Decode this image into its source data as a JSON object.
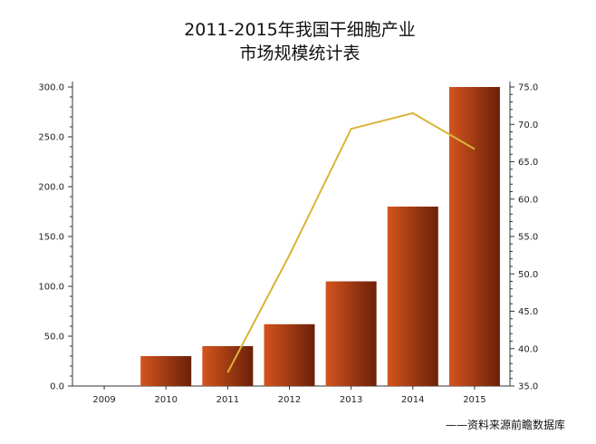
{
  "chart_data": {
    "type": "bar",
    "title_line1": "2011-2015年我国干细胞产业",
    "title_line2": "市场规模统计表",
    "categories": [
      "2009",
      "2010",
      "2011",
      "2012",
      "2013",
      "2014",
      "2015"
    ],
    "series": [
      {
        "type": "bar",
        "axis": "left",
        "values": [
          0,
          30,
          40,
          62,
          105,
          180,
          300
        ]
      },
      {
        "type": "line",
        "axis": "right",
        "values": [
          null,
          null,
          36.8,
          52.5,
          69.4,
          71.5,
          66.7
        ]
      }
    ],
    "y_left": {
      "min": 0,
      "max": 300,
      "ticks": [
        "0.0",
        "50.0",
        "100.0",
        "150.0",
        "200.0",
        "250.0",
        "300.0"
      ]
    },
    "y_right": {
      "min": 35,
      "max": 75,
      "ticks": [
        "35.0",
        "40.0",
        "45.0",
        "50.0",
        "55.0",
        "60.0",
        "65.0",
        "70.0",
        "75.0"
      ]
    },
    "grid": false,
    "colors": {
      "bar_light": "#d4541e",
      "bar_dark": "#6a2008",
      "line": "#d9b43a",
      "axis": "#333333"
    }
  },
  "source_note": "——资料来源前瞻数据库"
}
